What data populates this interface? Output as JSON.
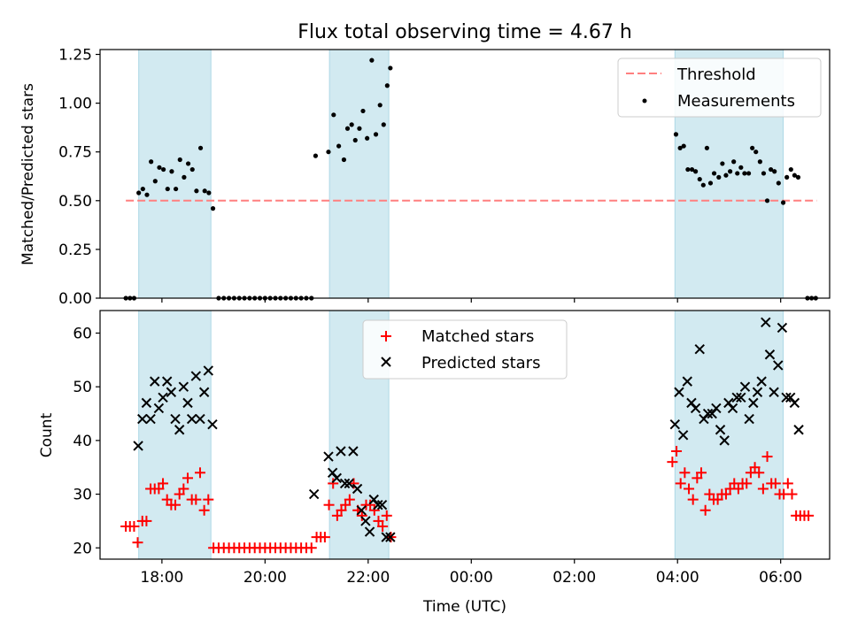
{
  "figure_title": "Flux total observing time = 4.67 h",
  "colors": {
    "shade": "#add8e6",
    "threshold": "#ff7f7f",
    "measurement": "#000000",
    "matched": "#ff0000",
    "predicted": "#000000"
  },
  "chart_data": [
    {
      "type": "scatter",
      "panel": "top",
      "ylabel": "Matched/Predicted stars",
      "xlabel": "",
      "xlim_hours": [
        16.8,
        30.95
      ],
      "ylim": [
        0,
        1.275
      ],
      "yticks": [
        0.0,
        0.25,
        0.5,
        0.75,
        1.0,
        1.25
      ],
      "ytick_labels": [
        "0.00",
        "0.25",
        "0.50",
        "0.75",
        "1.00",
        "1.25"
      ],
      "shaded_spans_hours": [
        [
          17.55,
          18.95
        ],
        [
          21.25,
          22.4
        ],
        [
          27.95,
          30.05
        ]
      ],
      "legend": {
        "placement": "top-right",
        "entries": [
          "Threshold",
          "Measurements"
        ]
      },
      "threshold": {
        "name": "Threshold",
        "value": 0.5,
        "x_hours": [
          17.3,
          30.7
        ]
      },
      "series": [
        {
          "name": "Measurements",
          "points": [
            [
              17.3,
              0.0
            ],
            [
              17.38,
              0.0
            ],
            [
              17.46,
              0.0
            ],
            [
              17.55,
              0.54
            ],
            [
              17.63,
              0.56
            ],
            [
              17.71,
              0.53
            ],
            [
              17.79,
              0.7
            ],
            [
              17.87,
              0.6
            ],
            [
              17.95,
              0.67
            ],
            [
              18.03,
              0.66
            ],
            [
              18.11,
              0.56
            ],
            [
              18.19,
              0.65
            ],
            [
              18.27,
              0.56
            ],
            [
              18.35,
              0.71
            ],
            [
              18.43,
              0.62
            ],
            [
              18.51,
              0.69
            ],
            [
              18.59,
              0.66
            ],
            [
              18.67,
              0.55
            ],
            [
              18.75,
              0.77
            ],
            [
              18.83,
              0.55
            ],
            [
              18.91,
              0.54
            ],
            [
              18.99,
              0.46
            ],
            [
              19.1,
              0.0
            ],
            [
              19.2,
              0.0
            ],
            [
              19.3,
              0.0
            ],
            [
              19.4,
              0.0
            ],
            [
              19.5,
              0.0
            ],
            [
              19.6,
              0.0
            ],
            [
              19.7,
              0.0
            ],
            [
              19.8,
              0.0
            ],
            [
              19.9,
              0.0
            ],
            [
              20.0,
              0.0
            ],
            [
              20.1,
              0.0
            ],
            [
              20.2,
              0.0
            ],
            [
              20.3,
              0.0
            ],
            [
              20.4,
              0.0
            ],
            [
              20.5,
              0.0
            ],
            [
              20.6,
              0.0
            ],
            [
              20.7,
              0.0
            ],
            [
              20.8,
              0.0
            ],
            [
              20.9,
              0.0
            ],
            [
              20.98,
              0.73
            ],
            [
              21.23,
              0.75
            ],
            [
              21.33,
              0.94
            ],
            [
              21.43,
              0.78
            ],
            [
              21.53,
              0.71
            ],
            [
              21.6,
              0.87
            ],
            [
              21.68,
              0.89
            ],
            [
              21.75,
              0.81
            ],
            [
              21.83,
              0.87
            ],
            [
              21.9,
              0.96
            ],
            [
              21.98,
              0.82
            ],
            [
              22.07,
              1.22
            ],
            [
              22.15,
              0.84
            ],
            [
              22.23,
              0.99
            ],
            [
              22.3,
              0.89
            ],
            [
              22.37,
              1.09
            ],
            [
              22.43,
              1.18
            ],
            [
              27.97,
              0.84
            ],
            [
              28.05,
              0.77
            ],
            [
              28.12,
              0.78
            ],
            [
              28.2,
              0.66
            ],
            [
              28.28,
              0.66
            ],
            [
              28.35,
              0.65
            ],
            [
              28.43,
              0.61
            ],
            [
              28.5,
              0.58
            ],
            [
              28.57,
              0.77
            ],
            [
              28.64,
              0.59
            ],
            [
              28.71,
              0.64
            ],
            [
              28.8,
              0.62
            ],
            [
              28.87,
              0.69
            ],
            [
              28.94,
              0.63
            ],
            [
              29.02,
              0.65
            ],
            [
              29.09,
              0.7
            ],
            [
              29.16,
              0.64
            ],
            [
              29.23,
              0.67
            ],
            [
              29.3,
              0.64
            ],
            [
              29.38,
              0.64
            ],
            [
              29.45,
              0.77
            ],
            [
              29.52,
              0.75
            ],
            [
              29.6,
              0.7
            ],
            [
              29.67,
              0.64
            ],
            [
              29.74,
              0.5
            ],
            [
              29.81,
              0.66
            ],
            [
              29.88,
              0.65
            ],
            [
              29.96,
              0.59
            ],
            [
              30.05,
              0.49
            ],
            [
              30.12,
              0.62
            ],
            [
              30.2,
              0.66
            ],
            [
              30.27,
              0.63
            ],
            [
              30.34,
              0.62
            ],
            [
              30.52,
              0.0
            ],
            [
              30.6,
              0.0
            ],
            [
              30.68,
              0.0
            ]
          ]
        }
      ]
    },
    {
      "type": "scatter",
      "panel": "bottom",
      "ylabel": "Count",
      "xlabel": "Time (UTC)",
      "xlim_hours": [
        16.8,
        30.95
      ],
      "ylim": [
        17.9,
        64.2
      ],
      "yticks": [
        20,
        30,
        40,
        50,
        60
      ],
      "ytick_labels": [
        "20",
        "30",
        "40",
        "50",
        "60"
      ],
      "xticks_hours": [
        18,
        20,
        22,
        24,
        26,
        28,
        30
      ],
      "xtick_labels": [
        "18:00",
        "20:00",
        "22:00",
        "00:00",
        "02:00",
        "04:00",
        "06:00"
      ],
      "shaded_spans_hours": [
        [
          17.55,
          18.95
        ],
        [
          21.25,
          22.4
        ],
        [
          27.95,
          30.05
        ]
      ],
      "legend": {
        "placement": "top-center",
        "entries": [
          "Matched stars",
          "Predicted stars"
        ]
      },
      "series": [
        {
          "name": "Matched stars",
          "marker": "+",
          "points": [
            [
              17.3,
              24
            ],
            [
              17.38,
              24
            ],
            [
              17.46,
              24
            ],
            [
              17.53,
              21
            ],
            [
              17.62,
              25
            ],
            [
              17.7,
              25
            ],
            [
              17.78,
              31
            ],
            [
              17.86,
              31
            ],
            [
              17.94,
              31
            ],
            [
              18.02,
              32
            ],
            [
              18.1,
              29
            ],
            [
              18.18,
              28
            ],
            [
              18.26,
              28
            ],
            [
              18.34,
              30
            ],
            [
              18.42,
              31
            ],
            [
              18.5,
              33
            ],
            [
              18.58,
              29
            ],
            [
              18.66,
              29
            ],
            [
              18.74,
              34
            ],
            [
              18.82,
              27
            ],
            [
              18.9,
              29
            ],
            [
              19.0,
              20
            ],
            [
              19.1,
              20
            ],
            [
              19.2,
              20
            ],
            [
              19.3,
              20
            ],
            [
              19.4,
              20
            ],
            [
              19.5,
              20
            ],
            [
              19.6,
              20
            ],
            [
              19.7,
              20
            ],
            [
              19.8,
              20
            ],
            [
              19.9,
              20
            ],
            [
              20.0,
              20
            ],
            [
              20.1,
              20
            ],
            [
              20.2,
              20
            ],
            [
              20.3,
              20
            ],
            [
              20.4,
              20
            ],
            [
              20.5,
              20
            ],
            [
              20.6,
              20
            ],
            [
              20.7,
              20
            ],
            [
              20.8,
              20
            ],
            [
              20.9,
              20
            ],
            [
              21.0,
              22
            ],
            [
              21.08,
              22
            ],
            [
              21.16,
              22
            ],
            [
              21.24,
              28
            ],
            [
              21.32,
              32
            ],
            [
              21.4,
              26
            ],
            [
              21.48,
              27
            ],
            [
              21.56,
              28
            ],
            [
              21.64,
              29
            ],
            [
              21.72,
              32
            ],
            [
              21.8,
              27
            ],
            [
              21.88,
              26
            ],
            [
              21.96,
              28
            ],
            [
              22.04,
              28
            ],
            [
              22.12,
              27
            ],
            [
              22.2,
              25
            ],
            [
              22.28,
              24
            ],
            [
              22.36,
              26
            ],
            [
              22.44,
              22
            ],
            [
              27.9,
              36
            ],
            [
              27.98,
              38
            ],
            [
              28.06,
              32
            ],
            [
              28.14,
              34
            ],
            [
              28.22,
              31
            ],
            [
              28.3,
              29
            ],
            [
              28.38,
              33
            ],
            [
              28.46,
              34
            ],
            [
              28.54,
              27
            ],
            [
              28.62,
              30
            ],
            [
              28.7,
              29
            ],
            [
              28.78,
              29
            ],
            [
              28.86,
              30
            ],
            [
              28.94,
              30
            ],
            [
              29.02,
              31
            ],
            [
              29.1,
              32
            ],
            [
              29.18,
              31
            ],
            [
              29.26,
              32
            ],
            [
              29.34,
              32
            ],
            [
              29.42,
              34
            ],
            [
              29.5,
              35
            ],
            [
              29.58,
              34
            ],
            [
              29.66,
              31
            ],
            [
              29.74,
              37
            ],
            [
              29.82,
              32
            ],
            [
              29.9,
              32
            ],
            [
              29.98,
              30
            ],
            [
              30.06,
              30
            ],
            [
              30.14,
              32
            ],
            [
              30.22,
              30
            ],
            [
              30.3,
              26
            ],
            [
              30.38,
              26
            ],
            [
              30.46,
              26
            ],
            [
              30.54,
              26
            ]
          ]
        },
        {
          "name": "Predicted stars",
          "marker": "x",
          "points": [
            [
              17.54,
              39
            ],
            [
              17.62,
              44
            ],
            [
              17.7,
              47
            ],
            [
              17.78,
              44
            ],
            [
              17.86,
              51
            ],
            [
              17.94,
              46
            ],
            [
              18.02,
              48
            ],
            [
              18.1,
              51
            ],
            [
              18.18,
              49
            ],
            [
              18.26,
              44
            ],
            [
              18.34,
              42
            ],
            [
              18.42,
              50
            ],
            [
              18.5,
              47
            ],
            [
              18.58,
              44
            ],
            [
              18.66,
              52
            ],
            [
              18.74,
              44
            ],
            [
              18.82,
              49
            ],
            [
              18.9,
              53
            ],
            [
              18.98,
              43
            ],
            [
              20.95,
              30
            ],
            [
              21.23,
              37
            ],
            [
              21.31,
              34
            ],
            [
              21.39,
              33
            ],
            [
              21.47,
              38
            ],
            [
              21.55,
              32
            ],
            [
              21.63,
              32
            ],
            [
              21.71,
              38
            ],
            [
              21.79,
              31
            ],
            [
              21.87,
              27
            ],
            [
              21.95,
              25
            ],
            [
              22.03,
              23
            ],
            [
              22.11,
              29
            ],
            [
              22.19,
              28
            ],
            [
              22.27,
              28
            ],
            [
              22.35,
              22
            ],
            [
              22.43,
              22
            ],
            [
              27.95,
              43
            ],
            [
              28.03,
              49
            ],
            [
              28.11,
              41
            ],
            [
              28.19,
              51
            ],
            [
              28.27,
              47
            ],
            [
              28.35,
              46
            ],
            [
              28.43,
              57
            ],
            [
              28.51,
              44
            ],
            [
              28.59,
              45
            ],
            [
              28.67,
              45
            ],
            [
              28.75,
              46
            ],
            [
              28.83,
              42
            ],
            [
              28.91,
              40
            ],
            [
              28.99,
              47
            ],
            [
              29.07,
              46
            ],
            [
              29.15,
              48
            ],
            [
              29.23,
              48
            ],
            [
              29.31,
              50
            ],
            [
              29.39,
              44
            ],
            [
              29.47,
              47
            ],
            [
              29.55,
              49
            ],
            [
              29.63,
              51
            ],
            [
              29.71,
              62
            ],
            [
              29.79,
              56
            ],
            [
              29.87,
              49
            ],
            [
              29.95,
              54
            ],
            [
              30.03,
              61
            ],
            [
              30.11,
              48
            ],
            [
              30.19,
              48
            ],
            [
              30.27,
              47
            ],
            [
              30.35,
              42
            ]
          ]
        }
      ]
    }
  ]
}
